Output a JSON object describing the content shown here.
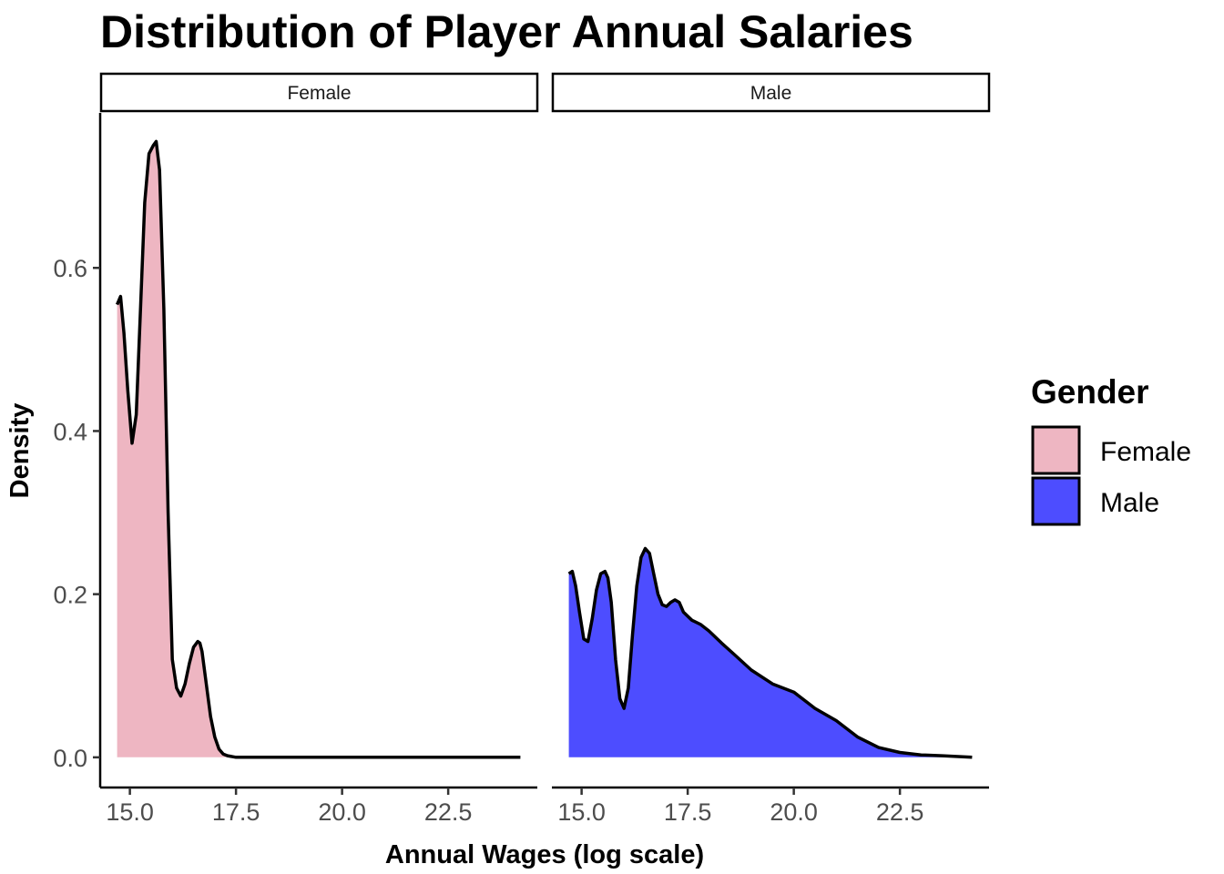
{
  "chart_data": {
    "type": "area",
    "title": "Distribution of Player Annual Salaries",
    "xlabel": "Annual Wages (log scale)",
    "ylabel": "Density",
    "xlim": [
      14.3,
      24.6
    ],
    "ylim": [
      -0.037,
      0.79
    ],
    "x_ticks": [
      15.0,
      17.5,
      20.0,
      22.5
    ],
    "x_tick_labels": [
      "15.0",
      "17.5",
      "20.0",
      "22.5"
    ],
    "y_ticks": [
      0.0,
      0.2,
      0.4,
      0.6
    ],
    "y_tick_labels": [
      "0.0",
      "0.2",
      "0.4",
      "0.6"
    ],
    "grid": false,
    "legend": {
      "title": "Gender",
      "position": "right",
      "entries": [
        {
          "label": "Female",
          "color": "#EEB6C2"
        },
        {
          "label": "Male",
          "color": "#4D4DFF"
        }
      ]
    },
    "facets": [
      {
        "label": "Female",
        "color": "#EEB6C2",
        "x": [
          14.7,
          14.78,
          14.86,
          14.95,
          15.05,
          15.15,
          15.25,
          15.35,
          15.45,
          15.55,
          15.62,
          15.7,
          15.8,
          15.9,
          16.0,
          16.1,
          16.2,
          16.3,
          16.4,
          16.5,
          16.6,
          16.65,
          16.7,
          16.8,
          16.9,
          17.0,
          17.1,
          17.2,
          17.3,
          17.5,
          18.0,
          19.0,
          20.0,
          21.0,
          22.0,
          23.0,
          24.2
        ],
        "y": [
          0.555,
          0.565,
          0.52,
          0.45,
          0.385,
          0.42,
          0.55,
          0.68,
          0.74,
          0.75,
          0.755,
          0.72,
          0.55,
          0.3,
          0.12,
          0.085,
          0.075,
          0.09,
          0.115,
          0.135,
          0.142,
          0.14,
          0.13,
          0.09,
          0.05,
          0.025,
          0.01,
          0.004,
          0.002,
          0.0,
          0.0,
          0.0,
          0.0,
          0.0,
          0.0,
          0.0,
          0.0
        ]
      },
      {
        "label": "Male",
        "color": "#4D4DFF",
        "x": [
          14.7,
          14.78,
          14.86,
          14.95,
          15.05,
          15.15,
          15.25,
          15.35,
          15.45,
          15.55,
          15.62,
          15.7,
          15.8,
          15.9,
          16.0,
          16.1,
          16.2,
          16.3,
          16.4,
          16.5,
          16.6,
          16.7,
          16.8,
          16.9,
          17.0,
          17.1,
          17.2,
          17.3,
          17.4,
          17.6,
          17.8,
          18.0,
          18.3,
          18.6,
          19.0,
          19.5,
          20.0,
          20.5,
          21.0,
          21.5,
          22.0,
          22.5,
          23.0,
          23.5,
          24.2
        ],
        "y": [
          0.225,
          0.228,
          0.21,
          0.178,
          0.145,
          0.142,
          0.17,
          0.205,
          0.225,
          0.228,
          0.22,
          0.19,
          0.12,
          0.072,
          0.06,
          0.085,
          0.15,
          0.21,
          0.245,
          0.256,
          0.25,
          0.225,
          0.2,
          0.187,
          0.185,
          0.19,
          0.193,
          0.19,
          0.178,
          0.168,
          0.163,
          0.155,
          0.14,
          0.126,
          0.107,
          0.09,
          0.08,
          0.06,
          0.045,
          0.025,
          0.012,
          0.006,
          0.003,
          0.002,
          0.0
        ]
      }
    ]
  }
}
